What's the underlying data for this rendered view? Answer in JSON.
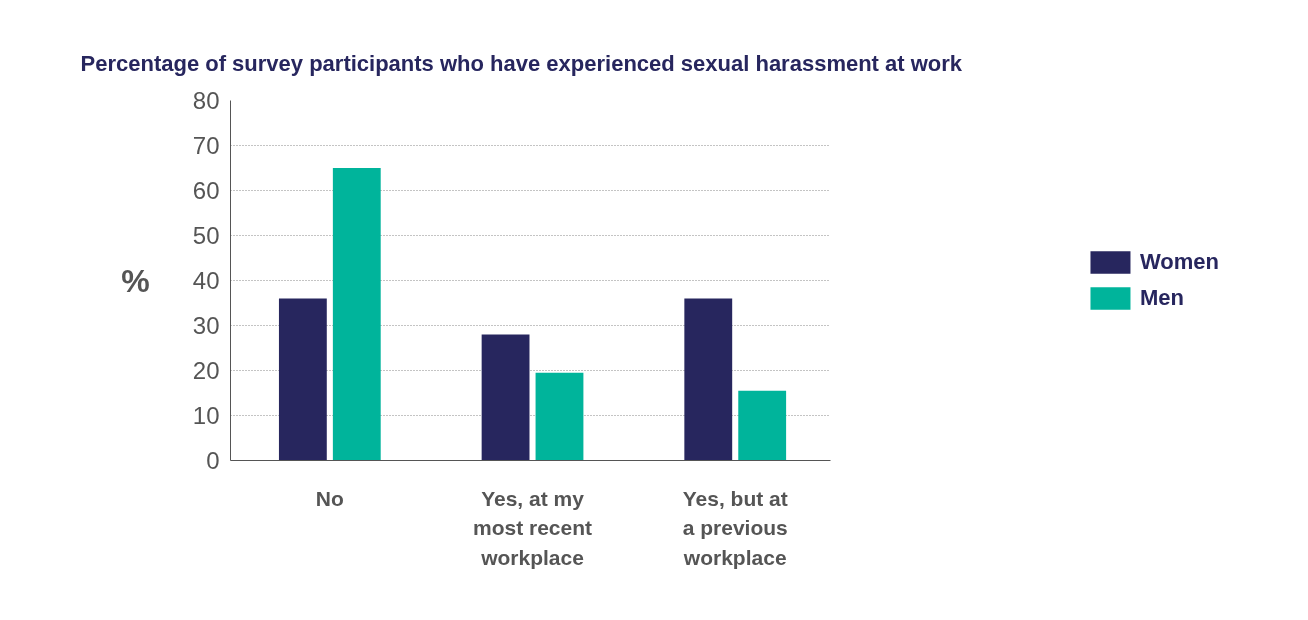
{
  "chart_data": {
    "type": "bar",
    "title": "Percentage of survey participants who have experienced sexual harassment at work",
    "ylabel": "%",
    "categories": [
      "No",
      "Yes, at my\nmost recent\nworkplace",
      "Yes, but at\na previous\nworkplace"
    ],
    "series": [
      {
        "name": "Women",
        "color": "#27265e",
        "values": [
          36,
          28,
          36
        ]
      },
      {
        "name": "Men",
        "color": "#00b49b",
        "values": [
          65,
          19.5,
          15.5
        ]
      }
    ],
    "ylim": [
      0,
      80
    ],
    "yticks": [
      0,
      10,
      20,
      30,
      40,
      50,
      60,
      70,
      80
    ],
    "grid": "y",
    "legend": "right"
  }
}
